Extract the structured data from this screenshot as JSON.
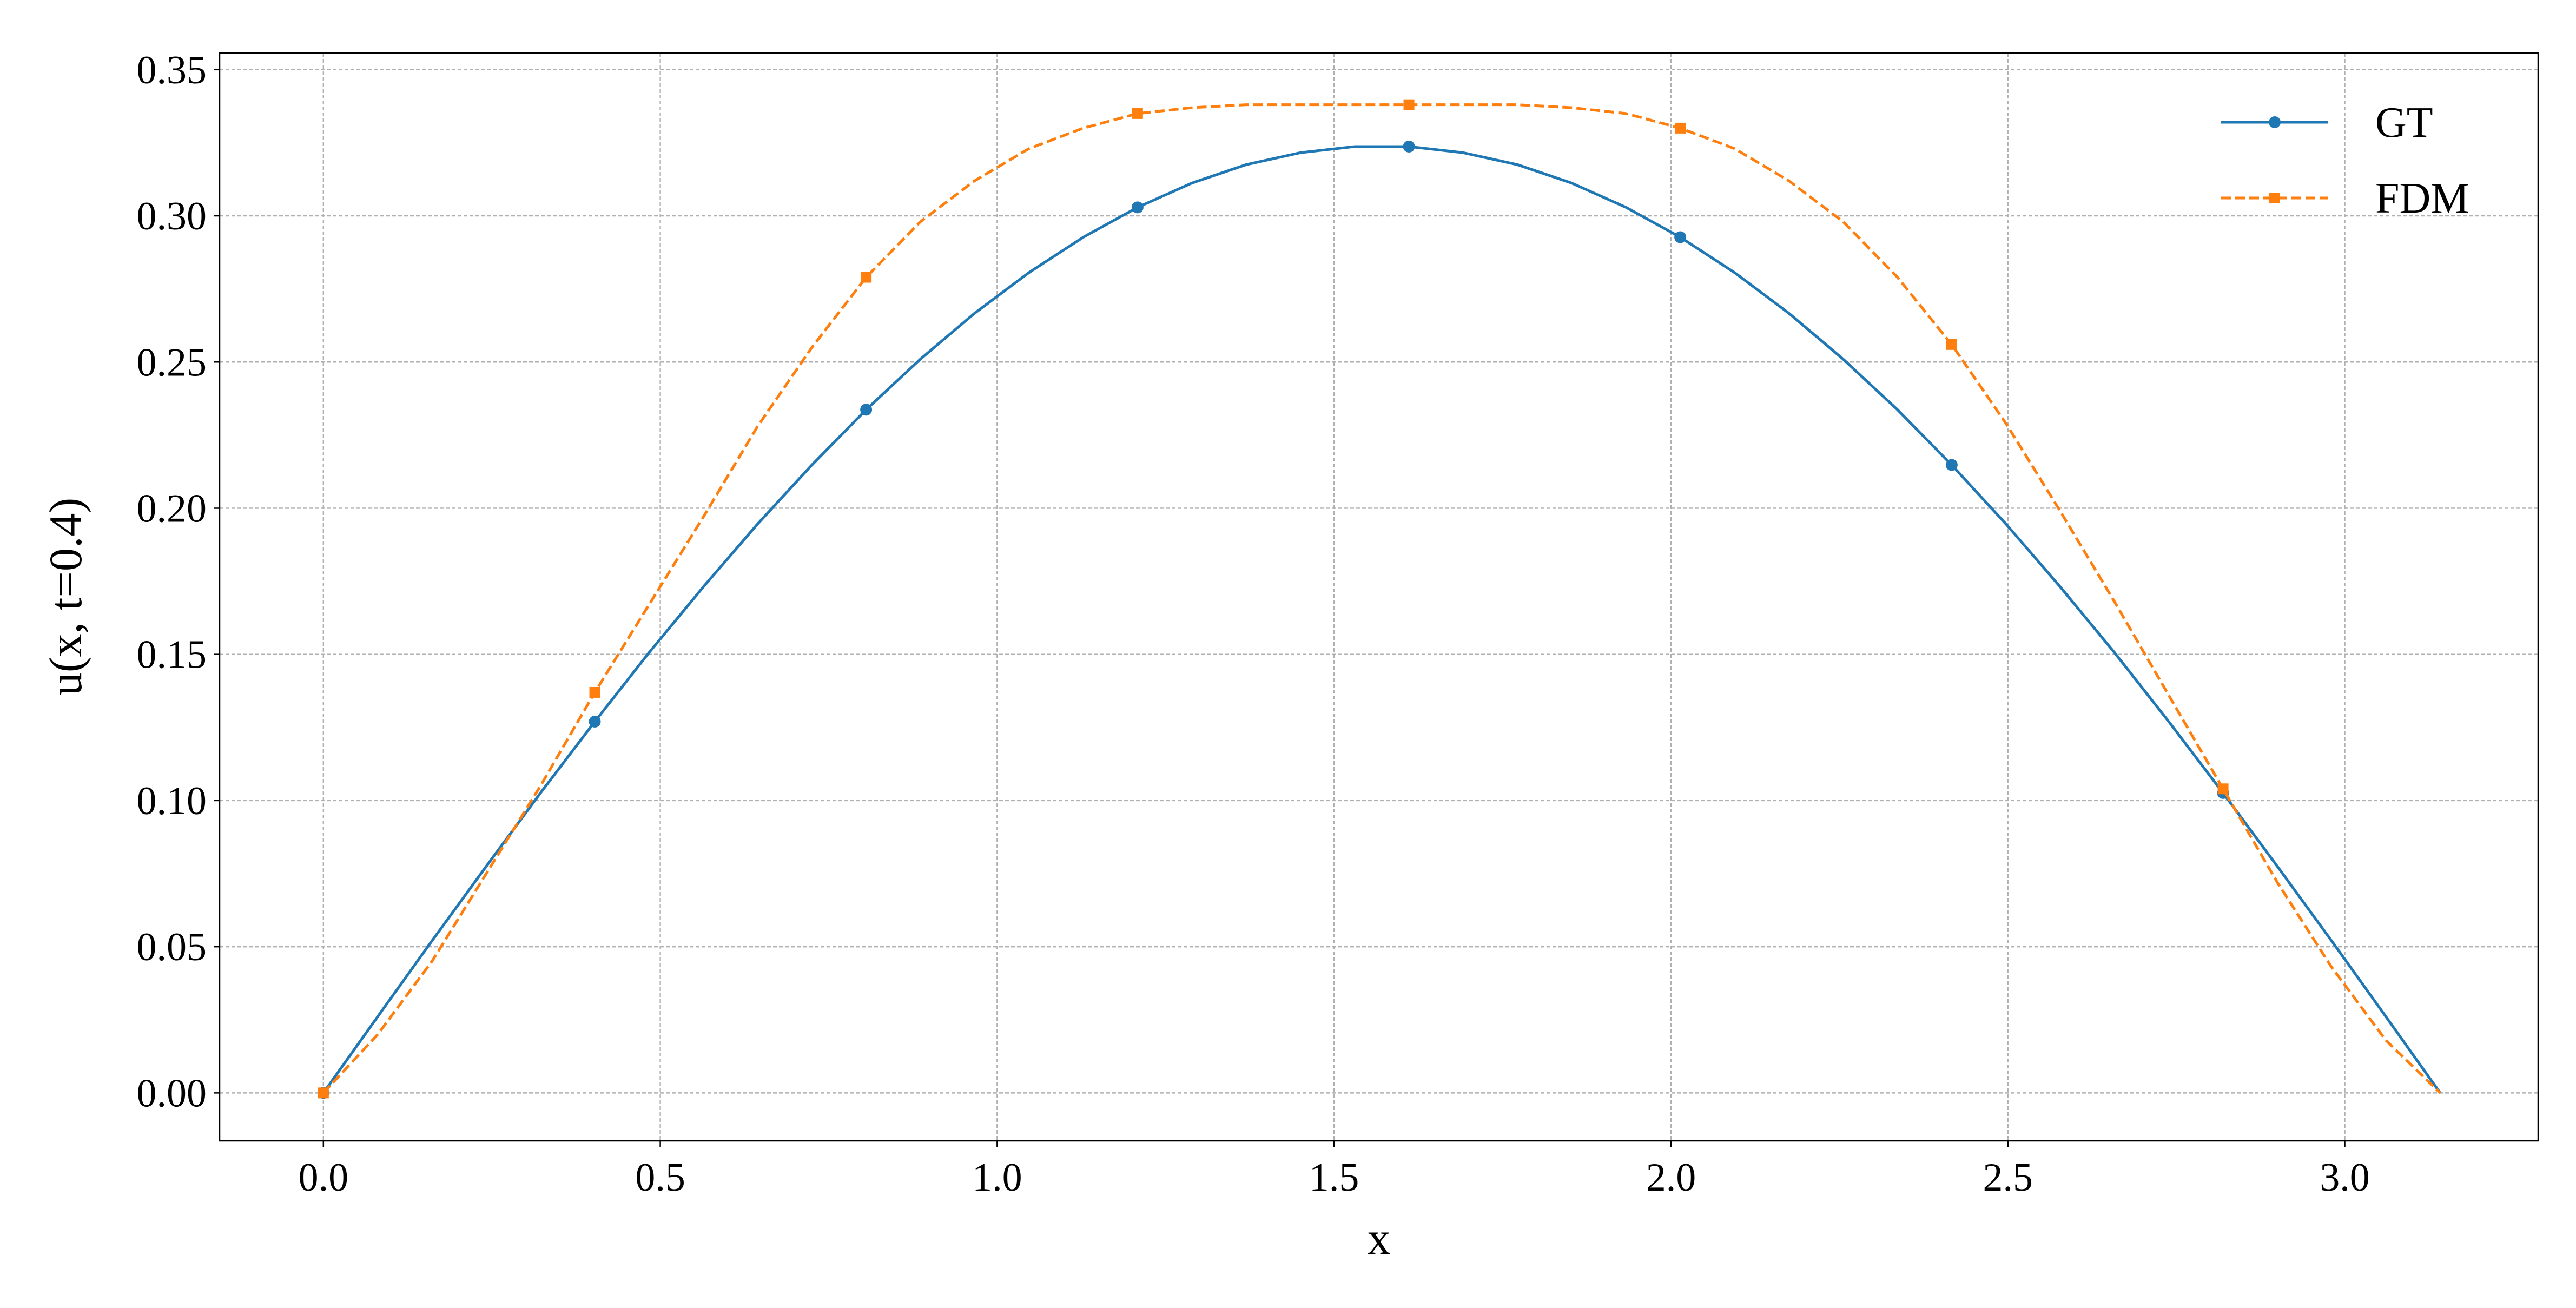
{
  "chart_data": {
    "type": "line",
    "xlabel": "x",
    "ylabel": "u(x, t=0.4)",
    "x": [
      0,
      0.0806,
      0.1611,
      0.2417,
      0.3222,
      0.4028,
      0.4833,
      0.5639,
      0.6444,
      0.725,
      0.8055,
      0.8861,
      0.9666,
      1.0472,
      1.1278,
      1.2083,
      1.2889,
      1.3694,
      1.45,
      1.5305,
      1.6111,
      1.6916,
      1.7722,
      1.8527,
      1.9333,
      2.0138,
      2.0944,
      2.1749,
      2.2555,
      2.3361,
      2.4166,
      2.4972,
      2.5777,
      2.6583,
      2.7388,
      2.8194,
      2.8999,
      2.9805,
      3.061,
      3.1416
    ],
    "series": [
      {
        "name": "GT",
        "color": "#1f77b4",
        "marker": "circle",
        "dash": "solid",
        "markevery": 5,
        "values": [
          0,
          0.0261,
          0.052,
          0.0775,
          0.1026,
          0.127,
          0.1506,
          0.1731,
          0.1946,
          0.2148,
          0.2337,
          0.251,
          0.2667,
          0.2806,
          0.2927,
          0.3029,
          0.3112,
          0.3175,
          0.3216,
          0.3237,
          0.3237,
          0.3216,
          0.3175,
          0.3112,
          0.3029,
          0.2927,
          0.2806,
          0.2667,
          0.251,
          0.2337,
          0.2148,
          0.1946,
          0.1731,
          0.1506,
          0.127,
          0.1026,
          0.0775,
          0.052,
          0.0261,
          0
        ]
      },
      {
        "name": "FDM",
        "color": "#ff7f0e",
        "marker": "square",
        "dash": "dashed",
        "markevery": 5,
        "values": [
          0,
          0.02,
          0.045,
          0.075,
          0.105,
          0.137,
          0.167,
          0.197,
          0.228,
          0.255,
          0.279,
          0.298,
          0.312,
          0.323,
          0.33,
          0.335,
          0.337,
          0.338,
          0.338,
          0.338,
          0.338,
          0.338,
          0.338,
          0.337,
          0.335,
          0.33,
          0.323,
          0.312,
          0.298,
          0.279,
          0.256,
          0.229,
          0.199,
          0.168,
          0.136,
          0.104,
          0.072,
          0.043,
          0.018,
          0
        ]
      }
    ],
    "xlim": [
      -0.154,
      3.287
    ],
    "ylim": [
      -0.0164,
      0.3557
    ],
    "xticks": [
      {
        "value": 0,
        "label": "0.0"
      },
      {
        "value": 0.5,
        "label": "0.5"
      },
      {
        "value": 1,
        "label": "1.0"
      },
      {
        "value": 1.5,
        "label": "1.5"
      },
      {
        "value": 2,
        "label": "2.0"
      },
      {
        "value": 2.5,
        "label": "2.5"
      },
      {
        "value": 3,
        "label": "3.0"
      }
    ],
    "yticks": [
      {
        "value": 0,
        "label": "0.00"
      },
      {
        "value": 0.05,
        "label": "0.05"
      },
      {
        "value": 0.1,
        "label": "0.10"
      },
      {
        "value": 0.15,
        "label": "0.15"
      },
      {
        "value": 0.2,
        "label": "0.20"
      },
      {
        "value": 0.25,
        "label": "0.25"
      },
      {
        "value": 0.3,
        "label": "0.30"
      },
      {
        "value": 0.35,
        "label": "0.35"
      }
    ],
    "grid": true,
    "legend": "upper right"
  }
}
